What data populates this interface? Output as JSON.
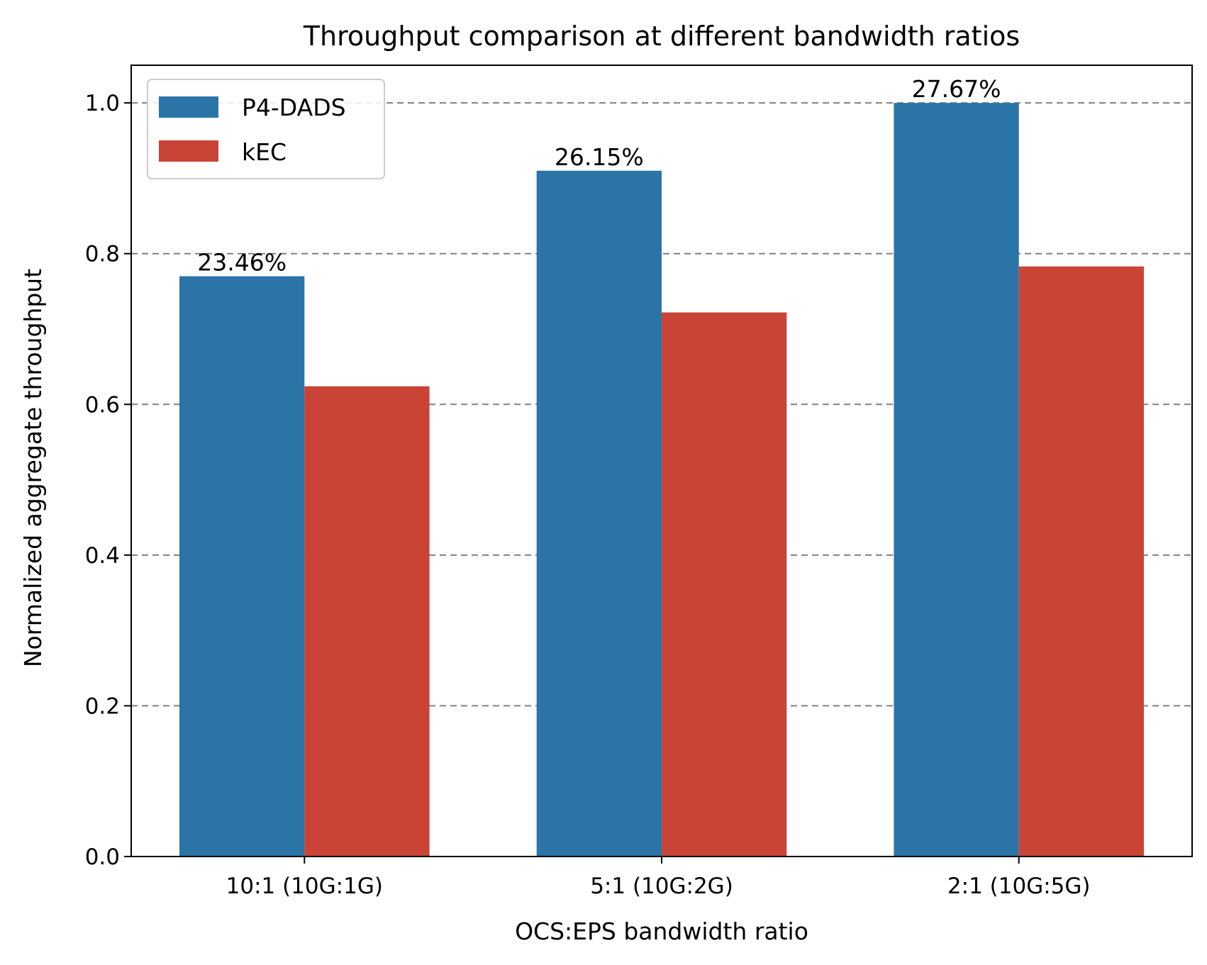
{
  "chart_data": {
    "type": "bar",
    "title": "Throughput comparison at different bandwidth ratios",
    "xlabel": "OCS:EPS bandwidth ratio",
    "ylabel": "Normalized aggregate throughput",
    "categories": [
      "10:1 (10G:1G)",
      "5:1 (10G:2G)",
      "2:1 (10G:5G)"
    ],
    "series": [
      {
        "name": "P4-DADS",
        "values": [
          0.77,
          0.91,
          1.0
        ],
        "color": "#2a74a7"
      },
      {
        "name": "kEC",
        "values": [
          0.624,
          0.722,
          0.783
        ],
        "color": "#c94436"
      }
    ],
    "annotations": [
      "23.46%",
      "26.15%",
      "27.67%"
    ],
    "ylim": [
      0,
      1.05
    ],
    "yticks": [
      0.0,
      0.2,
      0.4,
      0.6,
      0.8,
      1.0
    ],
    "ytick_labels": [
      "0.0",
      "0.2",
      "0.4",
      "0.6",
      "0.8",
      "1.0"
    ],
    "grid": "y-dashed",
    "legend_position": "top-left"
  }
}
